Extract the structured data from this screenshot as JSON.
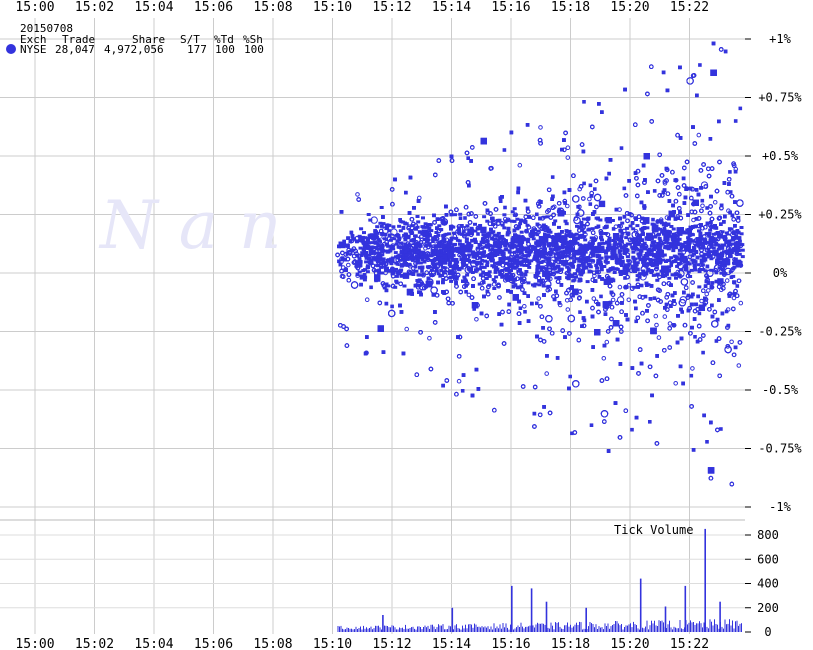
{
  "header": {
    "date": "20150708",
    "columns": [
      "Exch",
      "Trade",
      "Share",
      "S/T",
      "%Td",
      "%Sh"
    ],
    "row": [
      "NYSE",
      "28,047",
      "4,972,056",
      "177",
      "100",
      "100"
    ]
  },
  "watermark": "N  a  n",
  "chart_data": [
    {
      "type": "scatter",
      "x_ticks": [
        "15:00",
        "15:02",
        "15:04",
        "15:06",
        "15:08",
        "15:10",
        "15:12",
        "15:14",
        "15:16",
        "15:18",
        "15:20",
        "15:22"
      ],
      "y_ticks": [
        "+1%",
        "+0.75%",
        "+0.5%",
        "+0.25%",
        "0%",
        "-0.25%",
        "-0.5%",
        "-0.75%",
        "-1%"
      ],
      "xlim": [
        "15:00",
        "15:23:40"
      ],
      "ylim": [
        -1.0,
        1.0
      ],
      "series": [
        {
          "exchange": "NYSE",
          "color": "#3333dd",
          "trades": 28047
        }
      ],
      "grid": true
    },
    {
      "type": "bar",
      "title": "Tick Volume",
      "y_ticks": [
        "800",
        "600",
        "400",
        "200",
        "0"
      ],
      "ylim": [
        0,
        800
      ],
      "spikes": [
        {
          "time": "15:11:40",
          "value": 140
        },
        {
          "time": "15:14:00",
          "value": 200
        },
        {
          "time": "15:16:00",
          "value": 380
        },
        {
          "time": "15:16:40",
          "value": 360
        },
        {
          "time": "15:17:10",
          "value": 250
        },
        {
          "time": "15:18:30",
          "value": 200
        },
        {
          "time": "15:20:20",
          "value": 440
        },
        {
          "time": "15:21:10",
          "value": 210
        },
        {
          "time": "15:21:50",
          "value": 380
        },
        {
          "time": "15:22:30",
          "value": 850
        },
        {
          "time": "15:23:00",
          "value": 250
        }
      ],
      "color": "#3333dd"
    }
  ]
}
